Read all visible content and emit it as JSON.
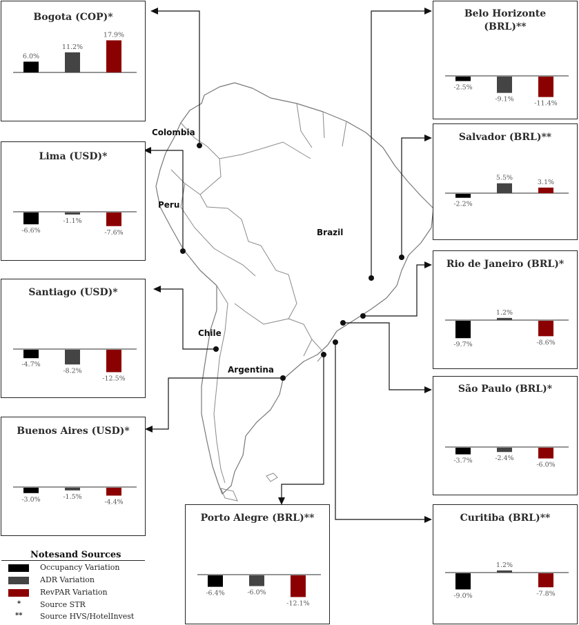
{
  "colors": {
    "occupancy": "#000000",
    "adr": "#444444",
    "revpar": "#8b0000",
    "map_stroke": "#777777",
    "connector": "#111111"
  },
  "map_labels": {
    "colombia": "Colombia",
    "peru": "Peru",
    "brazil": "Brazil",
    "chile": "Chile",
    "argentina": "Argentina"
  },
  "chart_data": [
    {
      "type": "bar",
      "title": "Bogota (COP)*",
      "categories": [
        "Occupancy Variation",
        "ADR Variation",
        "RevPAR Variation"
      ],
      "values": [
        6.0,
        11.2,
        17.9
      ],
      "labels": [
        "6.0%",
        "11.2%",
        "17.9%"
      ]
    },
    {
      "type": "bar",
      "title": "Lima (USD)*",
      "categories": [
        "Occupancy Variation",
        "ADR Variation",
        "RevPAR Variation"
      ],
      "values": [
        -6.6,
        -1.1,
        -7.6
      ],
      "labels": [
        "-6.6%",
        "-1.1%",
        "-7.6%"
      ]
    },
    {
      "type": "bar",
      "title": "Santiago (USD)*",
      "categories": [
        "Occupancy Variation",
        "ADR Variation",
        "RevPAR Variation"
      ],
      "values": [
        -4.7,
        -8.2,
        -12.5
      ],
      "labels": [
        "-4.7%",
        "-8.2%",
        "-12.5%"
      ]
    },
    {
      "type": "bar",
      "title": "Buenos Aires (USD)*",
      "categories": [
        "Occupancy Variation",
        "ADR Variation",
        "RevPAR Variation"
      ],
      "values": [
        -3.0,
        -1.5,
        -4.4
      ],
      "labels": [
        "-3.0%",
        "-1.5%",
        "-4.4%"
      ]
    },
    {
      "type": "bar",
      "title": "Porto Alegre (BRL)**",
      "categories": [
        "Occupancy Variation",
        "ADR Variation",
        "RevPAR Variation"
      ],
      "values": [
        -6.4,
        -6.0,
        -12.1
      ],
      "labels": [
        "-6.4%",
        "-6.0%",
        "-12.1%"
      ]
    },
    {
      "type": "bar",
      "title": "Belo Horizonte (BRL)**",
      "categories": [
        "Occupancy Variation",
        "ADR Variation",
        "RevPAR Variation"
      ],
      "values": [
        -2.5,
        -9.1,
        -11.4
      ],
      "labels": [
        "-2.5%",
        "-9.1%",
        "-11.4%"
      ]
    },
    {
      "type": "bar",
      "title": "Salvador (BRL)**",
      "categories": [
        "Occupancy Variation",
        "ADR Variation",
        "RevPAR Variation"
      ],
      "values": [
        -2.2,
        5.5,
        3.1
      ],
      "labels": [
        "-2.2%",
        "5.5%",
        "3.1%"
      ]
    },
    {
      "type": "bar",
      "title": "Rio de Janeiro (BRL)*",
      "categories": [
        "Occupancy Variation",
        "ADR Variation",
        "RevPAR Variation"
      ],
      "values": [
        -9.7,
        1.2,
        -8.6
      ],
      "labels": [
        "-9.7%",
        "1.2%",
        "-8.6%"
      ]
    },
    {
      "type": "bar",
      "title": "São Paulo (BRL)*",
      "categories": [
        "Occupancy Variation",
        "ADR Variation",
        "RevPAR Variation"
      ],
      "values": [
        -3.7,
        -2.4,
        -6.0
      ],
      "labels": [
        "-3.7%",
        "-2.4%",
        "-6.0%"
      ]
    },
    {
      "type": "bar",
      "title": "Curitiba (BRL)**",
      "categories": [
        "Occupancy Variation",
        "ADR Variation",
        "RevPAR Variation"
      ],
      "values": [
        -9.0,
        1.2,
        -7.8
      ],
      "labels": [
        "-9.0%",
        "1.2%",
        "-7.8%"
      ]
    }
  ],
  "legend": {
    "title": "Notesand Sources",
    "items": [
      {
        "label": "Occupancy Variation",
        "color": "#000000"
      },
      {
        "label": "ADR Variation",
        "color": "#444444"
      },
      {
        "label": "RevPAR Variation",
        "color": "#8b0000"
      }
    ],
    "notes": [
      {
        "symbol": "*",
        "label": "Source STR"
      },
      {
        "symbol": "**",
        "label": "Source HVS/HotelInvest"
      }
    ]
  }
}
